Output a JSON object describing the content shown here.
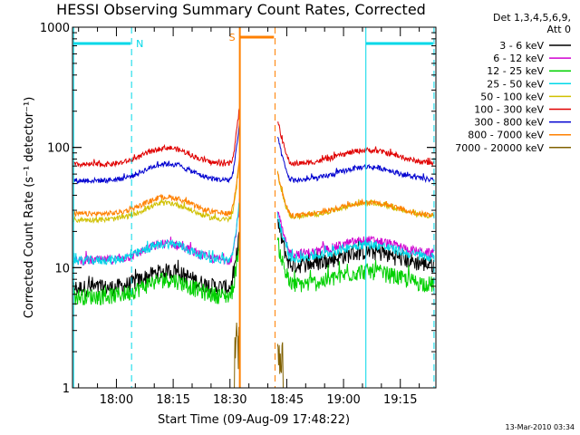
{
  "chart_data": {
    "type": "line",
    "title": "HESSI Observing Summary Count Rates, Corrected",
    "xlabel": "Start Time (09-Aug-09 17:48:22)",
    "ylabel": "Corrected Count Rate (s⁻¹ detector⁻¹)",
    "yscale": "log",
    "ylim": [
      1,
      1000
    ],
    "xlim_minutes": [
      0,
      96
    ],
    "x_ticks": [
      {
        "label": "18:00",
        "min": 11.6
      },
      {
        "label": "18:15",
        "min": 26.6
      },
      {
        "label": "18:30",
        "min": 41.6
      },
      {
        "label": "18:45",
        "min": 56.6
      },
      {
        "label": "19:00",
        "min": 71.6
      },
      {
        "label": "19:15",
        "min": 86.6
      }
    ],
    "y_ticks": [
      {
        "label": "1",
        "value": 1
      },
      {
        "label": "10",
        "value": 10
      },
      {
        "label": "100",
        "value": 100
      },
      {
        "label": "1000",
        "value": 1000
      }
    ],
    "legend_header": [
      "Det 1,3,4,5,6,9,",
      "Att 0"
    ],
    "legend_position": "right",
    "series": [
      {
        "name": "3 - 6 keV",
        "color": "#000000",
        "level": 6.8,
        "night_level": 10.5
      },
      {
        "name": "6 - 12 keV",
        "color": "#d000d0",
        "level": 11.5,
        "night_level": 13.0
      },
      {
        "name": "12 - 25 keV",
        "color": "#00d000",
        "level": 5.8,
        "night_level": 7.2
      },
      {
        "name": "25 - 50 keV",
        "color": "#00d8e8",
        "level": 11.5,
        "night_level": 12.0
      },
      {
        "name": "50 - 100 keV",
        "color": "#d0c000",
        "level": 25.0,
        "night_level": 26.5
      },
      {
        "name": "100 - 300 keV",
        "color": "#e00000",
        "level": 72.0,
        "night_level": 73.0
      },
      {
        "name": "300 - 800 keV",
        "color": "#0000d0",
        "level": 53.0,
        "night_level": 53.0
      },
      {
        "name": "800 - 7000 keV",
        "color": "#ff8000",
        "level": 28.0,
        "night_level": 27.0
      },
      {
        "name": "7000 - 20000 keV",
        "color": "#806000",
        "level": 1.0,
        "night_level": 1.0
      }
    ],
    "gap_minutes": [
      44.2,
      54.0
    ],
    "annotations": [
      {
        "label": "N",
        "color": "#00d8e8",
        "start_min": 0.3,
        "end_min": 15.6
      },
      {
        "label": "N",
        "color": "#00d8e8",
        "start_min": 77.5,
        "end_min": 95.5
      },
      {
        "label": "S",
        "color": "#ff8000",
        "start_min": 44.2,
        "end_min": 53.5
      }
    ],
    "timestamp": "13-Mar-2010 03:34"
  }
}
